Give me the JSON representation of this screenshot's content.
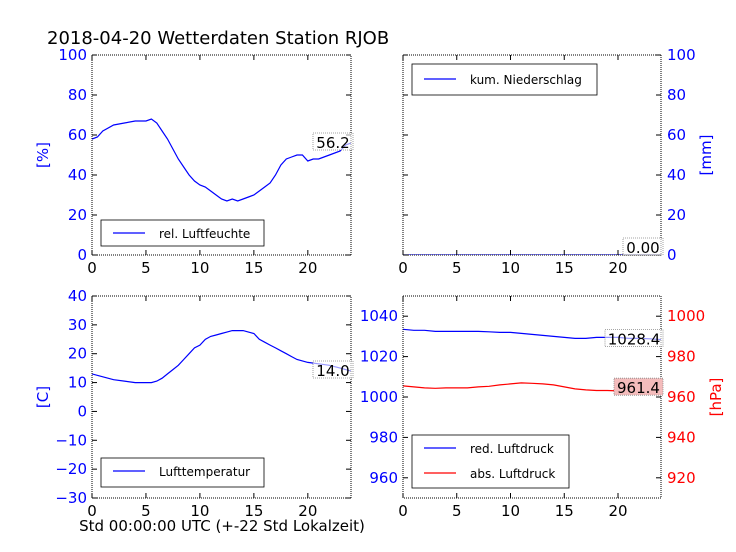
{
  "title": "2018-04-20 Wetterdaten Station RJOB",
  "xlabel": "Std 00:00:00 UTC (+-22 Std Lokalzeit)",
  "colors": {
    "blue": "#0000ff",
    "red": "#ff0000",
    "black": "#000000",
    "red_box": "#f4bcbc"
  },
  "chart_data": [
    {
      "id": "humidity",
      "type": "line",
      "xlim": [
        0,
        24
      ],
      "ylim": [
        0,
        100
      ],
      "xticks": [
        "0",
        "5",
        "10",
        "15",
        "20"
      ],
      "yticks": [
        "0",
        "20",
        "40",
        "60",
        "80",
        "100"
      ],
      "ylabel": "[%]",
      "ylabel_color": "blue",
      "legend": "top-left",
      "legend_position": "lower-left",
      "series": [
        {
          "name": "rel. Luftfeuchte",
          "color": "blue",
          "x": [
            0,
            0.5,
            1,
            2,
            3,
            4,
            5,
            5.5,
            6,
            6.5,
            7,
            7.5,
            8,
            8.5,
            9,
            9.5,
            10,
            10.5,
            11,
            11.5,
            12,
            12.5,
            13,
            13.5,
            14,
            14.5,
            15,
            15.5,
            16,
            16.5,
            17,
            17.5,
            18,
            18.5,
            19,
            19.5,
            20,
            20.5,
            21,
            22,
            23,
            23.5,
            24
          ],
          "y": [
            58,
            59,
            62,
            65,
            66,
            67,
            67,
            68,
            66,
            62,
            58,
            53,
            48,
            44,
            40,
            37,
            35,
            34,
            32,
            30,
            28,
            27,
            28,
            27,
            28,
            29,
            30,
            32,
            34,
            36,
            40,
            45,
            48,
            49,
            50,
            50,
            47,
            48,
            48,
            50,
            52,
            55,
            56
          ]
        }
      ],
      "annotation": "56.2"
    },
    {
      "id": "precipitation",
      "type": "line",
      "xlim": [
        0,
        24
      ],
      "ylim": [
        0,
        100
      ],
      "xticks": [
        "0",
        "5",
        "10",
        "15",
        "20"
      ],
      "yticks": [
        "0",
        "20",
        "40",
        "60",
        "80",
        "100"
      ],
      "ylabel": "[mm]",
      "ylabel_color": "blue",
      "legend_position": "upper-left",
      "series": [
        {
          "name": "kum. Niederschlag",
          "color": "blue",
          "x": [
            0,
            24
          ],
          "y": [
            0,
            0
          ]
        }
      ],
      "annotation": "0.00"
    },
    {
      "id": "temperature",
      "type": "line",
      "xlim": [
        0,
        24
      ],
      "ylim": [
        -30,
        40
      ],
      "xticks": [
        "0",
        "5",
        "10",
        "15",
        "20"
      ],
      "yticks": [
        "−30",
        "−20",
        "−10",
        "0",
        "10",
        "20",
        "30",
        "40"
      ],
      "ylabel": "[C]",
      "ylabel_color": "blue",
      "legend_position": "lower-left",
      "series": [
        {
          "name": "Lufttemperatur",
          "color": "blue",
          "x": [
            0,
            1,
            2,
            3,
            4,
            5,
            5.5,
            6,
            6.5,
            7,
            7.5,
            8,
            8.5,
            9,
            9.5,
            10,
            10.5,
            11,
            11.5,
            12,
            12.5,
            13,
            13.5,
            14,
            14.5,
            15,
            15.5,
            16,
            16.5,
            17,
            17.5,
            18,
            18.5,
            19,
            20,
            21,
            22,
            23,
            24
          ],
          "y": [
            13,
            12,
            11,
            10.5,
            10,
            10,
            10,
            10.5,
            11.5,
            13,
            14.5,
            16,
            18,
            20,
            22,
            23,
            25,
            26,
            26.5,
            27,
            27.5,
            28,
            28,
            28,
            27.5,
            27,
            25,
            24,
            23,
            22,
            21,
            20,
            19,
            18,
            17,
            16.5,
            16,
            15,
            14
          ]
        }
      ],
      "annotation": "14.0"
    },
    {
      "id": "pressure",
      "type": "line",
      "xlim": [
        0,
        24
      ],
      "ylim": [
        950,
        1050
      ],
      "ylim_right": [
        910,
        1010
      ],
      "xticks": [
        "0",
        "5",
        "10",
        "15",
        "20"
      ],
      "yticks": [
        "960",
        "980",
        "1000",
        "1020",
        "1040"
      ],
      "yticks_right": [
        "920",
        "940",
        "960",
        "980",
        "1000"
      ],
      "ylabel_right": "[hPa]",
      "ylabel_right_color": "red",
      "legend_position": "lower-left",
      "series": [
        {
          "name": "red. Luftdruck",
          "color": "blue",
          "axis": "left",
          "x": [
            0,
            1,
            2,
            3,
            4,
            5,
            6,
            7,
            8,
            9,
            10,
            11,
            12,
            13,
            14,
            15,
            16,
            17,
            18,
            19,
            20,
            21,
            22,
            23,
            24
          ],
          "y": [
            1033.5,
            1033,
            1033,
            1032.5,
            1032.5,
            1032.5,
            1032.5,
            1032.5,
            1032.3,
            1032,
            1032,
            1031.5,
            1031,
            1030.5,
            1030,
            1029.5,
            1029,
            1029,
            1029.5,
            1029.5,
            1029.5,
            1029,
            1029,
            1028.8,
            1028.4
          ]
        },
        {
          "name": "abs. Luftdruck",
          "color": "red",
          "axis": "right",
          "x": [
            0,
            1,
            2,
            3,
            4,
            5,
            6,
            7,
            8,
            9,
            10,
            11,
            12,
            13,
            14,
            15,
            16,
            17,
            18,
            19,
            20,
            21,
            22,
            23,
            24
          ],
          "y": [
            965.5,
            965,
            964.5,
            964.3,
            964.5,
            964.5,
            964.5,
            965,
            965.3,
            966,
            966.5,
            967,
            966.8,
            966.5,
            966,
            965,
            964,
            963.5,
            963.2,
            963.2,
            963,
            962.5,
            962.3,
            962,
            961.4
          ]
        }
      ],
      "annotation": "1028.4",
      "annotation_right": "961.4"
    }
  ]
}
